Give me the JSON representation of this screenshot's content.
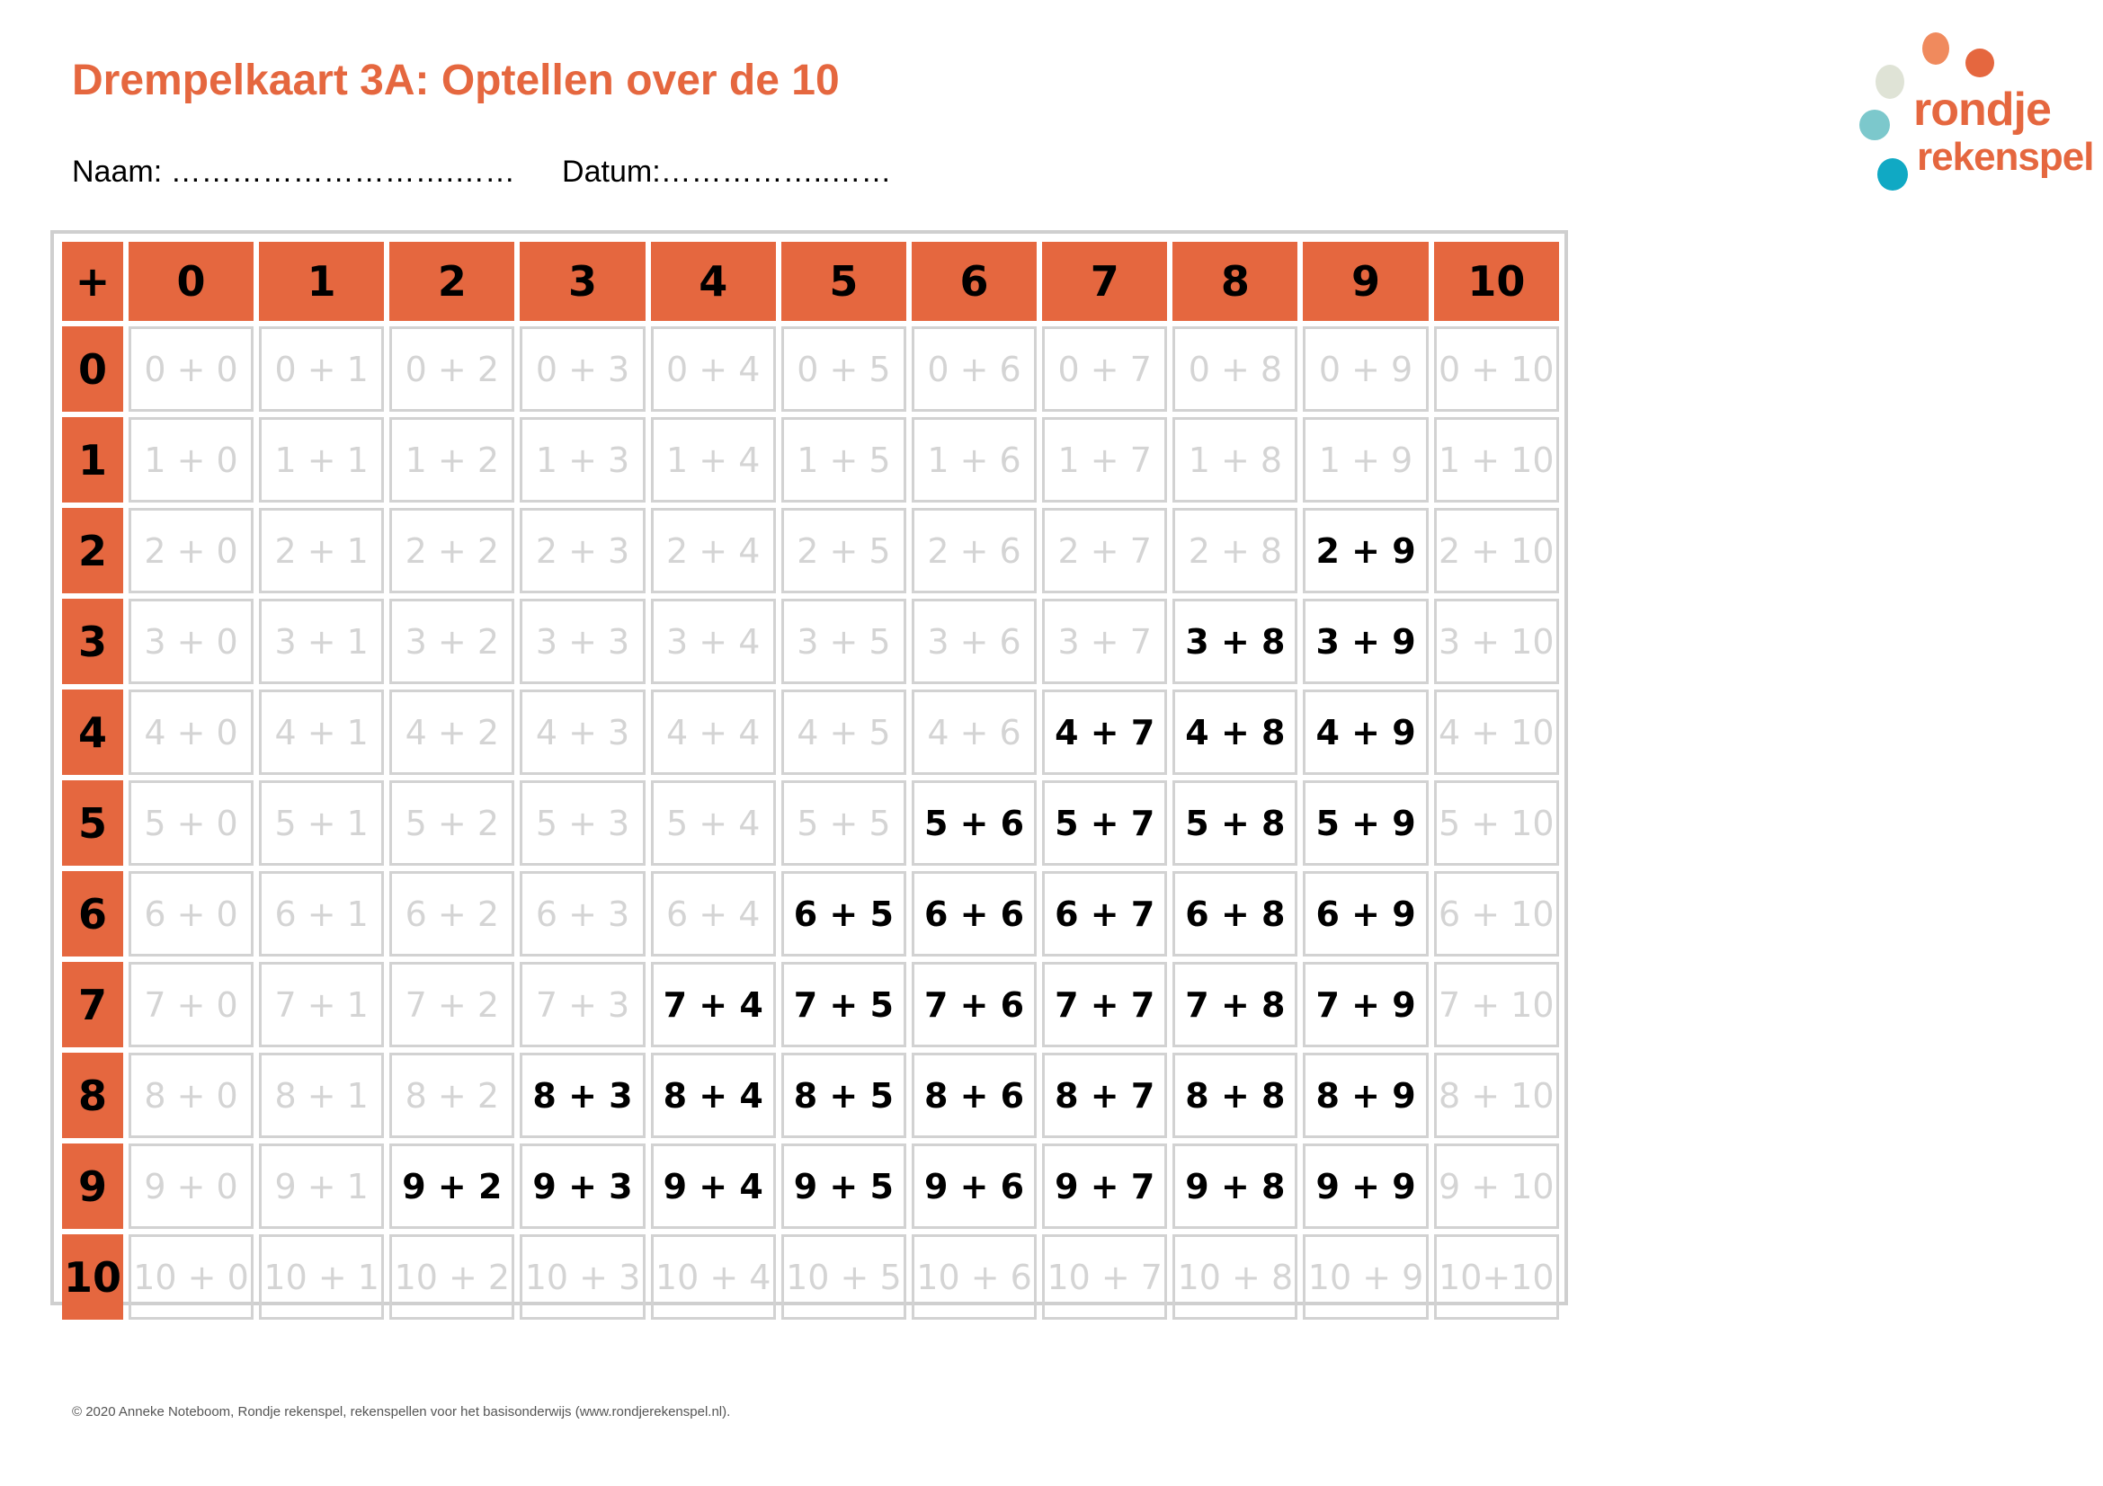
{
  "header": {
    "title": "Drempelkaart 3A: Optellen over de 10",
    "name_field": "Naam: ……………………….……",
    "date_field": "Datum:……………..……"
  },
  "logo": {
    "word_top": "rondje",
    "word_bottom": "rekenspel",
    "colors": [
      "#f08a5d",
      "#e5673f",
      "#dfe3d6",
      "#7cc8cc",
      "#10a9c4"
    ]
  },
  "colors": {
    "accent": "#e5673f",
    "faint_text": "#d4d4d4",
    "strong_text": "#000000",
    "cell_border": "#d2d2d2"
  },
  "table": {
    "operator": "+",
    "column_headers": [
      "0",
      "1",
      "2",
      "3",
      "4",
      "5",
      "6",
      "7",
      "8",
      "9",
      "10"
    ],
    "row_headers": [
      "0",
      "1",
      "2",
      "3",
      "4",
      "5",
      "6",
      "7",
      "8",
      "9",
      "10"
    ],
    "rows": [
      [
        {
          "text": "0 + 0",
          "bold": false
        },
        {
          "text": "0 + 1",
          "bold": false
        },
        {
          "text": "0 + 2",
          "bold": false
        },
        {
          "text": "0 + 3",
          "bold": false
        },
        {
          "text": "0 + 4",
          "bold": false
        },
        {
          "text": "0 + 5",
          "bold": false
        },
        {
          "text": "0 + 6",
          "bold": false
        },
        {
          "text": "0 + 7",
          "bold": false
        },
        {
          "text": "0 + 8",
          "bold": false
        },
        {
          "text": "0 + 9",
          "bold": false
        },
        {
          "text": "0 + 10",
          "bold": false
        }
      ],
      [
        {
          "text": "1 + 0",
          "bold": false
        },
        {
          "text": "1 + 1",
          "bold": false
        },
        {
          "text": "1 + 2",
          "bold": false
        },
        {
          "text": "1 + 3",
          "bold": false
        },
        {
          "text": "1 + 4",
          "bold": false
        },
        {
          "text": "1 + 5",
          "bold": false
        },
        {
          "text": "1 + 6",
          "bold": false
        },
        {
          "text": "1 + 7",
          "bold": false
        },
        {
          "text": "1 + 8",
          "bold": false
        },
        {
          "text": "1 + 9",
          "bold": false
        },
        {
          "text": "1 + 10",
          "bold": false
        }
      ],
      [
        {
          "text": "2 + 0",
          "bold": false
        },
        {
          "text": "2 + 1",
          "bold": false
        },
        {
          "text": "2 + 2",
          "bold": false
        },
        {
          "text": "2 + 3",
          "bold": false
        },
        {
          "text": "2 + 4",
          "bold": false
        },
        {
          "text": "2 + 5",
          "bold": false
        },
        {
          "text": "2 + 6",
          "bold": false
        },
        {
          "text": "2 + 7",
          "bold": false
        },
        {
          "text": "2 + 8",
          "bold": false
        },
        {
          "text": "2 + 9",
          "bold": true
        },
        {
          "text": "2 + 10",
          "bold": false
        }
      ],
      [
        {
          "text": "3 + 0",
          "bold": false
        },
        {
          "text": "3 + 1",
          "bold": false
        },
        {
          "text": "3 + 2",
          "bold": false
        },
        {
          "text": "3 + 3",
          "bold": false
        },
        {
          "text": "3 + 4",
          "bold": false
        },
        {
          "text": "3 + 5",
          "bold": false
        },
        {
          "text": "3 + 6",
          "bold": false
        },
        {
          "text": "3 + 7",
          "bold": false
        },
        {
          "text": "3 + 8",
          "bold": true
        },
        {
          "text": "3 + 9",
          "bold": true
        },
        {
          "text": "3 + 10",
          "bold": false
        }
      ],
      [
        {
          "text": "4 + 0",
          "bold": false
        },
        {
          "text": "4 + 1",
          "bold": false
        },
        {
          "text": "4 + 2",
          "bold": false
        },
        {
          "text": "4 + 3",
          "bold": false
        },
        {
          "text": "4 + 4",
          "bold": false
        },
        {
          "text": "4 + 5",
          "bold": false
        },
        {
          "text": "4 + 6",
          "bold": false
        },
        {
          "text": "4 + 7",
          "bold": true
        },
        {
          "text": "4 + 8",
          "bold": true
        },
        {
          "text": "4 + 9",
          "bold": true
        },
        {
          "text": "4 + 10",
          "bold": false
        }
      ],
      [
        {
          "text": "5 + 0",
          "bold": false
        },
        {
          "text": "5 + 1",
          "bold": false
        },
        {
          "text": "5 + 2",
          "bold": false
        },
        {
          "text": "5 + 3",
          "bold": false
        },
        {
          "text": "5 + 4",
          "bold": false
        },
        {
          "text": "5 + 5",
          "bold": false
        },
        {
          "text": "5 + 6",
          "bold": true
        },
        {
          "text": "5 + 7",
          "bold": true
        },
        {
          "text": "5 + 8",
          "bold": true
        },
        {
          "text": "5 + 9",
          "bold": true
        },
        {
          "text": "5 + 10",
          "bold": false
        }
      ],
      [
        {
          "text": "6 + 0",
          "bold": false
        },
        {
          "text": "6 + 1",
          "bold": false
        },
        {
          "text": "6 + 2",
          "bold": false
        },
        {
          "text": "6 + 3",
          "bold": false
        },
        {
          "text": "6 + 4",
          "bold": false
        },
        {
          "text": "6 + 5",
          "bold": true
        },
        {
          "text": "6 + 6",
          "bold": true
        },
        {
          "text": "6 + 7",
          "bold": true
        },
        {
          "text": "6 + 8",
          "bold": true
        },
        {
          "text": "6 + 9",
          "bold": true
        },
        {
          "text": "6 + 10",
          "bold": false
        }
      ],
      [
        {
          "text": "7 + 0",
          "bold": false
        },
        {
          "text": "7 + 1",
          "bold": false
        },
        {
          "text": "7 + 2",
          "bold": false
        },
        {
          "text": "7 + 3",
          "bold": false
        },
        {
          "text": "7 + 4",
          "bold": true
        },
        {
          "text": "7 + 5",
          "bold": true
        },
        {
          "text": "7 + 6",
          "bold": true
        },
        {
          "text": "7 + 7",
          "bold": true
        },
        {
          "text": "7 + 8",
          "bold": true
        },
        {
          "text": "7 + 9",
          "bold": true
        },
        {
          "text": "7 + 10",
          "bold": false
        }
      ],
      [
        {
          "text": "8 + 0",
          "bold": false
        },
        {
          "text": "8 + 1",
          "bold": false
        },
        {
          "text": "8 + 2",
          "bold": false
        },
        {
          "text": "8 + 3",
          "bold": true
        },
        {
          "text": "8 + 4",
          "bold": true
        },
        {
          "text": "8 + 5",
          "bold": true
        },
        {
          "text": "8 + 6",
          "bold": true
        },
        {
          "text": "8 + 7",
          "bold": true
        },
        {
          "text": "8 + 8",
          "bold": true
        },
        {
          "text": "8 + 9",
          "bold": true
        },
        {
          "text": "8 + 10",
          "bold": false
        }
      ],
      [
        {
          "text": "9 + 0",
          "bold": false
        },
        {
          "text": "9 + 1",
          "bold": false
        },
        {
          "text": "9 + 2",
          "bold": true
        },
        {
          "text": "9 + 3",
          "bold": true
        },
        {
          "text": "9 + 4",
          "bold": true
        },
        {
          "text": "9 + 5",
          "bold": true
        },
        {
          "text": "9 + 6",
          "bold": true
        },
        {
          "text": "9 + 7",
          "bold": true
        },
        {
          "text": "9 + 8",
          "bold": true
        },
        {
          "text": "9 + 9",
          "bold": true
        },
        {
          "text": "9 + 10",
          "bold": false
        }
      ],
      [
        {
          "text": "10 + 0",
          "bold": false
        },
        {
          "text": "10 + 1",
          "bold": false
        },
        {
          "text": "10 + 2",
          "bold": false
        },
        {
          "text": "10 + 3",
          "bold": false
        },
        {
          "text": "10 + 4",
          "bold": false
        },
        {
          "text": "10 + 5",
          "bold": false
        },
        {
          "text": "10 + 6",
          "bold": false
        },
        {
          "text": "10 + 7",
          "bold": false
        },
        {
          "text": "10 + 8",
          "bold": false
        },
        {
          "text": "10 + 9",
          "bold": false
        },
        {
          "text": "10+10",
          "bold": false
        }
      ]
    ]
  },
  "footer": {
    "copyright": "© 2020 Anneke Noteboom, Rondje rekenspel, rekenspellen voor het basisonderwijs (www.rondjerekenspel.nl)."
  }
}
